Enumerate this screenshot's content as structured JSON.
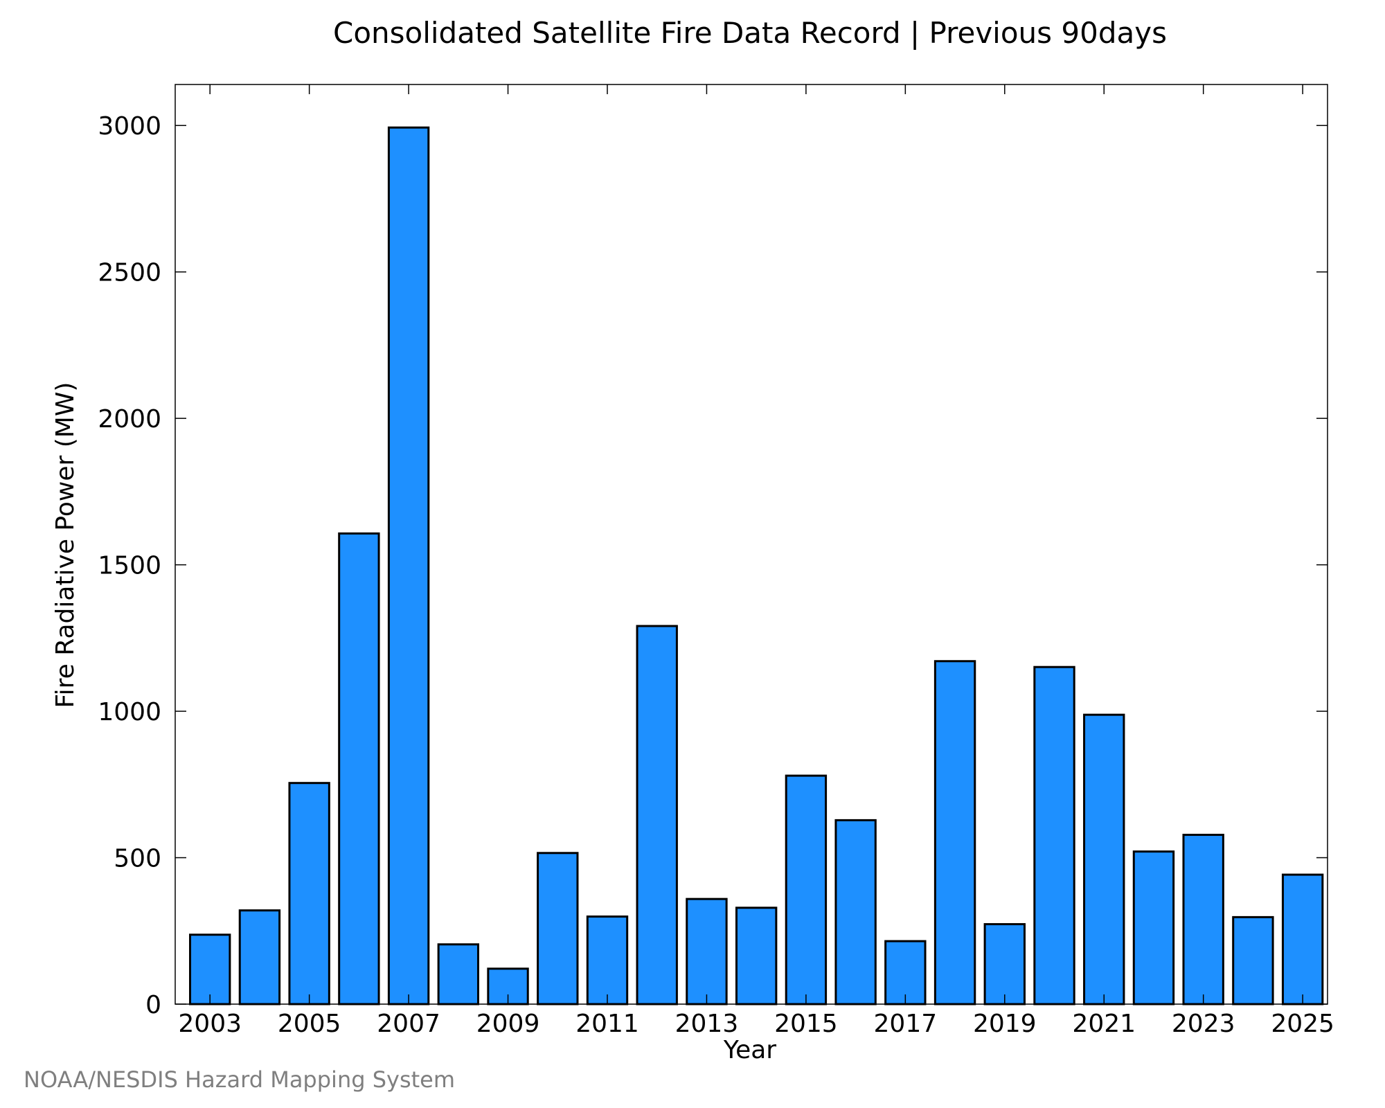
{
  "chart_data": {
    "type": "bar",
    "title": "Consolidated Satellite Fire Data Record | Previous 90days",
    "xlabel": "Year",
    "ylabel": "Fire Radiative Power (MW)",
    "credit": "NOAA/NESDIS Hazard Mapping System",
    "categories": [
      "2003",
      "2004",
      "2005",
      "2006",
      "2007",
      "2008",
      "2009",
      "2010",
      "2011",
      "2012",
      "2013",
      "2014",
      "2015",
      "2016",
      "2017",
      "2018",
      "2019",
      "2020",
      "2021",
      "2022",
      "2023",
      "2024",
      "2025"
    ],
    "values": [
      237,
      320,
      755,
      1607,
      2993,
      204,
      121,
      516,
      299,
      1291,
      359,
      329,
      780,
      628,
      215,
      1171,
      273,
      1151,
      988,
      521,
      578,
      297,
      442
    ],
    "x_tick_labels": [
      "2003",
      "2005",
      "2007",
      "2009",
      "2011",
      "2013",
      "2015",
      "2017",
      "2019",
      "2021",
      "2023",
      "2025"
    ],
    "y_ticks": [
      0,
      500,
      1000,
      1500,
      2000,
      2500,
      3000
    ],
    "ylim": [
      0,
      3140
    ],
    "grid": false,
    "colors": {
      "bar": "#1e90ff",
      "bar_edge": "#000000",
      "credit": "#7f7f7f"
    }
  }
}
